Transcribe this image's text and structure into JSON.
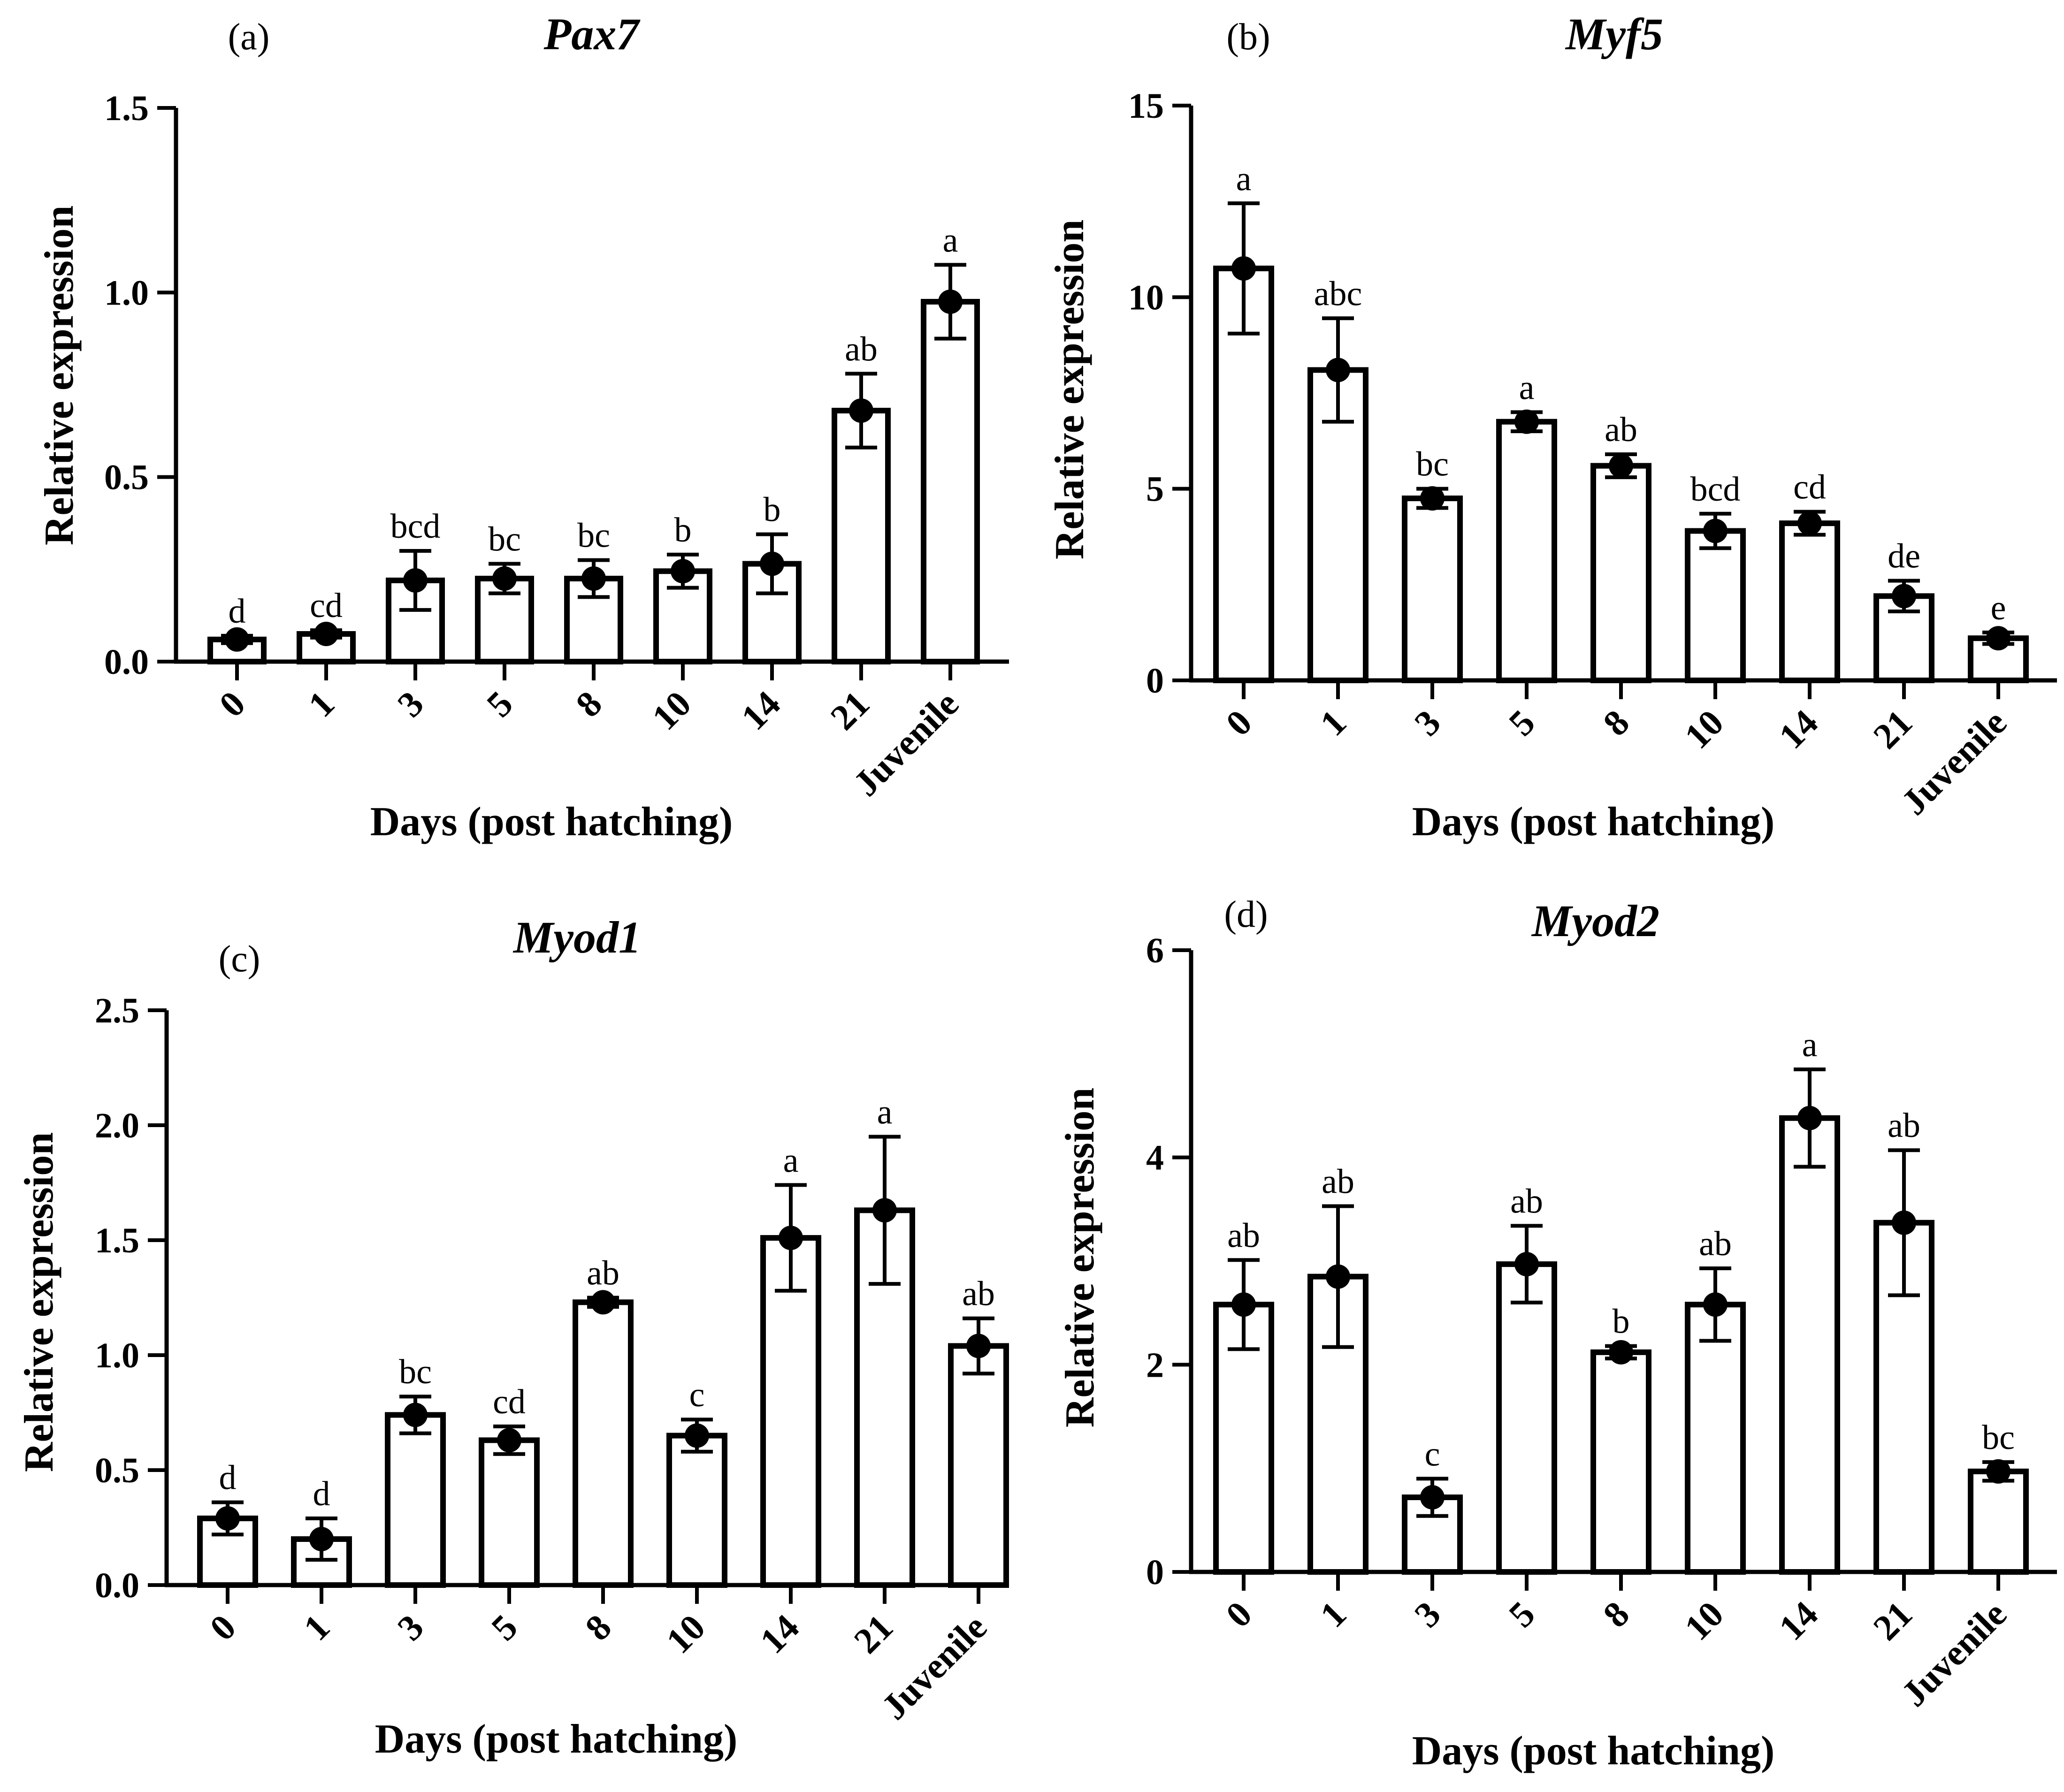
{
  "figure": {
    "background": "#ffffff",
    "ink": "#000000"
  },
  "chart_data": [
    {
      "type": "bar",
      "panel": "(a)",
      "title": "Pax7",
      "xlabel": "Days (post hatching)",
      "ylabel": "Relative expression",
      "ylim": [
        0,
        1.5
      ],
      "yticks": [
        0,
        0.5,
        1.0,
        1.5
      ],
      "ytick_labels": [
        "0.0",
        "0.5",
        "1.0",
        "1.5"
      ],
      "categories": [
        "0",
        "1",
        "3",
        "5",
        "8",
        "10",
        "14",
        "21",
        "Juvenile"
      ],
      "values": [
        0.06,
        0.075,
        0.22,
        0.225,
        0.225,
        0.245,
        0.265,
        0.68,
        0.975
      ],
      "error": [
        0.01,
        0.01,
        0.08,
        0.04,
        0.05,
        0.045,
        0.08,
        0.1,
        0.1
      ],
      "significance": [
        "d",
        "cd",
        "bcd",
        "bc",
        "bc",
        "b",
        "b",
        "ab",
        "a"
      ]
    },
    {
      "type": "bar",
      "panel": "(b)",
      "title": "Myf5",
      "xlabel": "Days (post hatching)",
      "ylabel": "Relative expression",
      "ylim": [
        0,
        15
      ],
      "yticks": [
        0,
        5,
        10,
        15
      ],
      "ytick_labels": [
        "0",
        "5",
        "10",
        "15"
      ],
      "categories": [
        "0",
        "1",
        "3",
        "5",
        "8",
        "10",
        "14",
        "21",
        "Juvenile"
      ],
      "values": [
        10.75,
        8.1,
        4.75,
        6.75,
        5.6,
        3.9,
        4.1,
        2.2,
        1.1
      ],
      "error": [
        1.7,
        1.35,
        0.25,
        0.25,
        0.3,
        0.45,
        0.3,
        0.4,
        0.15
      ],
      "significance": [
        "a",
        "abc",
        "bc",
        "a",
        "ab",
        "bcd",
        "cd",
        "de",
        "e"
      ]
    },
    {
      "type": "bar",
      "panel": "(c)",
      "title": "Myod1",
      "xlabel": "Days (post hatching)",
      "ylabel": "Relative expression",
      "ylim": [
        0,
        2.5
      ],
      "yticks": [
        0,
        0.5,
        1.0,
        1.5,
        2.0,
        2.5
      ],
      "ytick_labels": [
        "0.0",
        "0.5",
        "1.0",
        "1.5",
        "2.0",
        "2.5"
      ],
      "categories": [
        "0",
        "1",
        "3",
        "5",
        "8",
        "10",
        "14",
        "21",
        "Juvenile"
      ],
      "values": [
        0.29,
        0.2,
        0.74,
        0.63,
        1.23,
        0.65,
        1.51,
        1.63,
        1.04
      ],
      "error": [
        0.07,
        0.09,
        0.08,
        0.06,
        0.02,
        0.07,
        0.23,
        0.32,
        0.12
      ],
      "significance": [
        "d",
        "d",
        "bc",
        "cd",
        "ab",
        "c",
        "a",
        "a",
        "ab"
      ]
    },
    {
      "type": "bar",
      "panel": "(d)",
      "title": "Myod2",
      "xlabel": "Days (post hatching)",
      "ylabel": "Relative expression",
      "ylim": [
        0,
        6
      ],
      "yticks": [
        0,
        2,
        4,
        6
      ],
      "ytick_labels": [
        "0",
        "2",
        "4",
        "6"
      ],
      "categories": [
        "0",
        "1",
        "3",
        "5",
        "8",
        "10",
        "14",
        "21",
        "Juvenile"
      ],
      "values": [
        2.58,
        2.85,
        0.72,
        2.97,
        2.12,
        2.58,
        4.38,
        3.37,
        0.97
      ],
      "error": [
        0.43,
        0.68,
        0.18,
        0.37,
        0.06,
        0.35,
        0.47,
        0.7,
        0.09
      ],
      "significance": [
        "ab",
        "ab",
        "c",
        "ab",
        "b",
        "ab",
        "a",
        "ab",
        "bc"
      ]
    }
  ]
}
